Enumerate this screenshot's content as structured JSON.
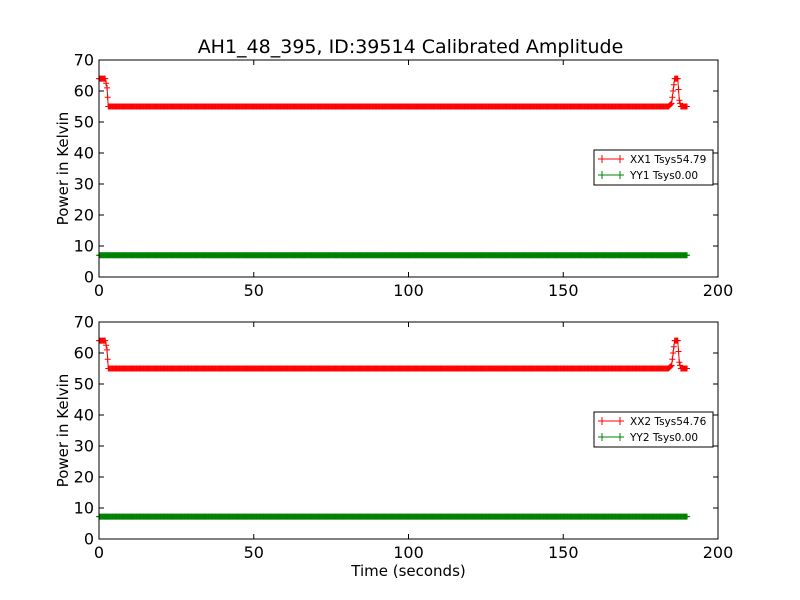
{
  "chart_data": [
    {
      "type": "line",
      "title": "AH1_48_395, ID:39514 Calibrated Amplitude",
      "xlabel": "",
      "ylabel": "Power in Kelvin",
      "xlim": [
        0,
        200
      ],
      "ylim": [
        0,
        70
      ],
      "xticks": [
        "0",
        "50",
        "100",
        "150",
        "200"
      ],
      "yticks": [
        "0",
        "10",
        "20",
        "30",
        "40",
        "50",
        "60",
        "70"
      ],
      "grid": false,
      "legend_position": "center-right",
      "series": [
        {
          "name": "XX1 Tsys54.79",
          "color": "#ff0000",
          "marker": "plus",
          "x": [
            0,
            1,
            2,
            2.6,
            3,
            5,
            20,
            40,
            60,
            80,
            100,
            120,
            140,
            160,
            180,
            184,
            185,
            186,
            187,
            187.5,
            188,
            190
          ],
          "y": [
            64,
            64,
            64,
            61,
            55,
            55,
            55,
            55,
            55,
            55,
            55,
            55,
            55,
            55,
            55,
            55,
            56,
            64,
            64,
            57,
            55,
            55
          ]
        },
        {
          "name": "YY1 Tsys0.00",
          "color": "#008000",
          "marker": "plus",
          "x": [
            0,
            190
          ],
          "y": [
            7,
            7
          ]
        }
      ]
    },
    {
      "type": "line",
      "title": "",
      "xlabel": "Time (seconds)",
      "ylabel": "Power in Kelvin",
      "xlim": [
        0,
        200
      ],
      "ylim": [
        0,
        70
      ],
      "xticks": [
        "0",
        "50",
        "100",
        "150",
        "200"
      ],
      "yticks": [
        "0",
        "10",
        "20",
        "30",
        "40",
        "50",
        "60",
        "70"
      ],
      "grid": false,
      "legend_position": "center-right",
      "series": [
        {
          "name": "XX2 Tsys54.76",
          "color": "#ff0000",
          "marker": "plus",
          "x": [
            0,
            1,
            2,
            2.6,
            3,
            5,
            20,
            40,
            60,
            80,
            100,
            120,
            140,
            160,
            180,
            184,
            185,
            186,
            187,
            187.5,
            188,
            190
          ],
          "y": [
            64,
            64,
            64,
            61,
            55,
            55,
            55,
            55,
            55,
            55,
            55,
            55,
            55,
            55,
            55,
            55,
            56,
            64,
            64,
            57,
            55,
            55
          ]
        },
        {
          "name": "YY2 Tsys0.00",
          "color": "#008000",
          "marker": "plus",
          "x": [
            0,
            190
          ],
          "y": [
            7.2,
            7.2
          ]
        }
      ]
    }
  ]
}
